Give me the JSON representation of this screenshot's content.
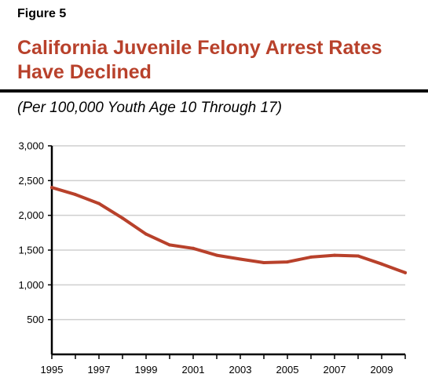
{
  "figure_label": "Figure 5",
  "colors": {
    "title": "#b8412b",
    "line": "#b8412b",
    "grid": "#cfcfcf",
    "axis": "#000000"
  },
  "chart_data": {
    "type": "line",
    "title": "California Juvenile Felony Arrest Rates Have Declined",
    "subtitle": "(Per 100,000 Youth Age 10 Through 17)",
    "xlabel": "",
    "ylabel": "",
    "xlim": [
      1995,
      2010
    ],
    "ylim": [
      0,
      3000
    ],
    "grid": true,
    "x_ticks": [
      "1995",
      "1997",
      "1999",
      "2001",
      "2003",
      "2005",
      "2007",
      "2009"
    ],
    "y_ticks": [
      "500",
      "1,000",
      "1,500",
      "2,000",
      "2,500",
      "3,000"
    ],
    "series": [
      {
        "x": [
          1995,
          1996,
          1997,
          1998,
          1999,
          2000,
          2001,
          2002,
          2003,
          2004,
          2005,
          2006,
          2007,
          2008,
          2009,
          2010
        ],
        "values": [
          2400,
          2300,
          2170,
          1960,
          1730,
          1575,
          1525,
          1425,
          1370,
          1320,
          1330,
          1400,
          1425,
          1415,
          1300,
          1175
        ]
      }
    ]
  }
}
